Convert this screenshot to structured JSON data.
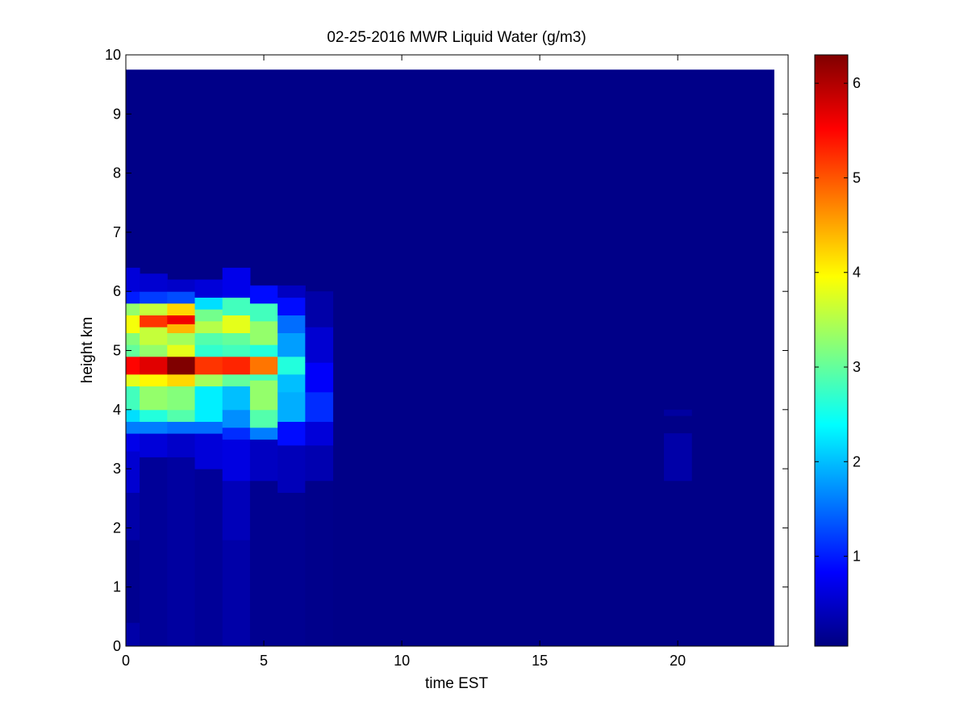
{
  "chart_data": {
    "type": "heatmap",
    "title": "02-25-2016 MWR Liquid Water (g/m3)",
    "xlabel": "time EST",
    "ylabel": "height km",
    "xlim": [
      0,
      24
    ],
    "ylim": [
      0,
      10
    ],
    "xticks": [
      0,
      5,
      10,
      15,
      20
    ],
    "yticks": [
      0,
      1,
      2,
      3,
      4,
      5,
      6,
      7,
      8,
      9,
      10
    ],
    "colorbar": {
      "range": [
        0.05,
        6.3
      ],
      "ticks": [
        1,
        2,
        3,
        4,
        5,
        6
      ],
      "colormap": "jet"
    },
    "grid": false,
    "background_value": 0.1,
    "data_extent": {
      "x": [
        0,
        23.5
      ],
      "y": [
        0,
        9.75
      ]
    },
    "columns": [
      {
        "x0": 0.0,
        "x1": 0.5,
        "cells": [
          [
            0.0,
            0.4,
            0.3
          ],
          [
            0.4,
            1.8,
            0.15
          ],
          [
            1.8,
            2.6,
            0.3
          ],
          [
            2.6,
            3.3,
            0.55
          ],
          [
            3.3,
            3.6,
            0.7
          ],
          [
            3.6,
            3.8,
            1.6
          ],
          [
            3.8,
            4.0,
            2.2
          ],
          [
            4.0,
            4.4,
            2.8
          ],
          [
            4.4,
            4.6,
            3.8
          ],
          [
            4.6,
            4.9,
            5.5
          ],
          [
            4.9,
            5.1,
            3.0
          ],
          [
            5.1,
            5.3,
            3.2
          ],
          [
            5.3,
            5.6,
            3.9
          ],
          [
            5.6,
            5.8,
            3.3
          ],
          [
            5.8,
            6.0,
            1.0
          ],
          [
            6.0,
            6.4,
            0.6
          ]
        ]
      },
      {
        "x0": 0.5,
        "x1": 1.5,
        "cells": [
          [
            0.0,
            3.2,
            0.2
          ],
          [
            3.2,
            3.6,
            0.6
          ],
          [
            3.6,
            3.8,
            1.6
          ],
          [
            3.8,
            4.0,
            2.6
          ],
          [
            4.0,
            4.4,
            3.3
          ],
          [
            4.4,
            4.6,
            4.0
          ],
          [
            4.6,
            4.9,
            5.7
          ],
          [
            4.9,
            5.1,
            3.3
          ],
          [
            5.1,
            5.4,
            3.6
          ],
          [
            5.4,
            5.6,
            5.2
          ],
          [
            5.6,
            5.8,
            3.6
          ],
          [
            5.8,
            6.0,
            1.2
          ],
          [
            6.0,
            6.3,
            0.55
          ]
        ]
      },
      {
        "x0": 1.5,
        "x1": 2.5,
        "cells": [
          [
            0.0,
            3.2,
            0.25
          ],
          [
            3.2,
            3.6,
            0.5
          ],
          [
            3.6,
            3.8,
            1.5
          ],
          [
            3.8,
            4.0,
            2.9
          ],
          [
            4.0,
            4.4,
            3.2
          ],
          [
            4.4,
            4.6,
            4.2
          ],
          [
            4.6,
            4.9,
            6.3
          ],
          [
            4.9,
            5.1,
            3.8
          ],
          [
            5.1,
            5.3,
            3.4
          ],
          [
            5.3,
            5.45,
            4.4
          ],
          [
            5.45,
            5.6,
            5.6
          ],
          [
            5.6,
            5.8,
            4.2
          ],
          [
            5.8,
            6.0,
            1.3
          ],
          [
            6.0,
            6.2,
            0.5
          ]
        ]
      },
      {
        "x0": 2.5,
        "x1": 3.5,
        "cells": [
          [
            0.0,
            3.0,
            0.2
          ],
          [
            3.0,
            3.6,
            0.6
          ],
          [
            3.6,
            3.8,
            1.5
          ],
          [
            3.8,
            4.4,
            2.3
          ],
          [
            4.4,
            4.6,
            3.4
          ],
          [
            4.6,
            4.9,
            5.2
          ],
          [
            4.9,
            5.1,
            2.7
          ],
          [
            5.1,
            5.3,
            2.9
          ],
          [
            5.3,
            5.5,
            3.5
          ],
          [
            5.5,
            5.7,
            3.1
          ],
          [
            5.7,
            5.9,
            2.2
          ],
          [
            5.9,
            6.2,
            0.6
          ]
        ]
      },
      {
        "x0": 3.5,
        "x1": 4.5,
        "cells": [
          [
            0.0,
            1.8,
            0.3
          ],
          [
            1.8,
            2.8,
            0.4
          ],
          [
            2.8,
            3.5,
            0.65
          ],
          [
            3.5,
            3.7,
            1.1
          ],
          [
            3.7,
            4.0,
            1.7
          ],
          [
            4.0,
            4.4,
            2.0
          ],
          [
            4.4,
            4.6,
            3.0
          ],
          [
            4.6,
            4.9,
            5.3
          ],
          [
            4.9,
            5.1,
            2.8
          ],
          [
            5.1,
            5.3,
            3.0
          ],
          [
            5.3,
            5.6,
            3.8
          ],
          [
            5.6,
            5.9,
            2.8
          ],
          [
            5.9,
            6.4,
            0.7
          ]
        ]
      },
      {
        "x0": 4.5,
        "x1": 5.5,
        "cells": [
          [
            0.0,
            2.8,
            0.15
          ],
          [
            2.8,
            3.5,
            0.45
          ],
          [
            3.5,
            3.7,
            1.6
          ],
          [
            3.7,
            4.0,
            2.9
          ],
          [
            4.0,
            4.5,
            3.3
          ],
          [
            4.5,
            4.6,
            2.8
          ],
          [
            4.6,
            4.9,
            4.8
          ],
          [
            4.9,
            5.1,
            2.6
          ],
          [
            5.1,
            5.5,
            3.3
          ],
          [
            5.5,
            5.8,
            2.8
          ],
          [
            5.8,
            6.1,
            0.9
          ]
        ]
      },
      {
        "x0": 5.5,
        "x1": 6.5,
        "cells": [
          [
            0.0,
            2.6,
            0.15
          ],
          [
            2.6,
            3.4,
            0.4
          ],
          [
            3.4,
            3.8,
            0.9
          ],
          [
            3.8,
            4.3,
            1.9
          ],
          [
            4.3,
            4.6,
            2.0
          ],
          [
            4.6,
            4.9,
            2.6
          ],
          [
            4.9,
            5.3,
            1.8
          ],
          [
            5.3,
            5.6,
            1.5
          ],
          [
            5.6,
            5.9,
            0.9
          ],
          [
            5.9,
            6.1,
            0.45
          ]
        ]
      },
      {
        "x0": 6.5,
        "x1": 7.5,
        "cells": [
          [
            0.0,
            2.8,
            0.12
          ],
          [
            2.8,
            3.4,
            0.35
          ],
          [
            3.4,
            3.8,
            0.6
          ],
          [
            3.8,
            4.3,
            1.1
          ],
          [
            4.3,
            4.8,
            0.8
          ],
          [
            4.8,
            5.4,
            0.55
          ],
          [
            5.4,
            6.0,
            0.3
          ]
        ]
      },
      {
        "x0": 19.5,
        "x1": 20.5,
        "cells": [
          [
            2.8,
            3.6,
            0.3
          ],
          [
            3.9,
            4.0,
            0.25
          ]
        ]
      }
    ]
  }
}
